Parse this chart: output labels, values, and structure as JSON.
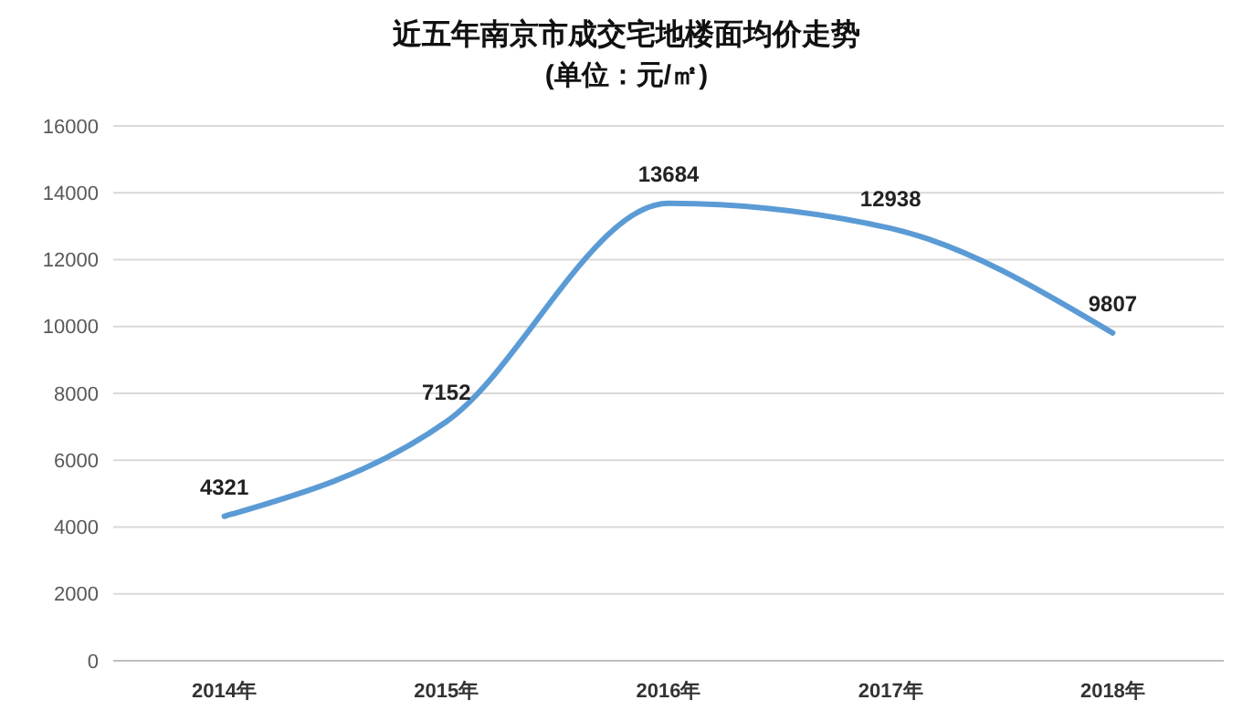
{
  "chart_data": {
    "type": "line",
    "title": "近五年南京市成交宅地楼面均价走势",
    "subtitle": "(单位：元/㎡)",
    "categories": [
      "2014年",
      "2015年",
      "2016年",
      "2017年",
      "2018年"
    ],
    "series": [
      {
        "color": "#5b9bd5",
        "values": [
          4321,
          7152,
          13684,
          12938,
          9807
        ]
      }
    ],
    "ylim": [
      0,
      16000
    ],
    "yticks": [
      0,
      2000,
      4000,
      6000,
      8000,
      10000,
      12000,
      14000,
      16000
    ],
    "grid": "y",
    "data_labels": true,
    "marker": "none",
    "line_style": "solid"
  }
}
